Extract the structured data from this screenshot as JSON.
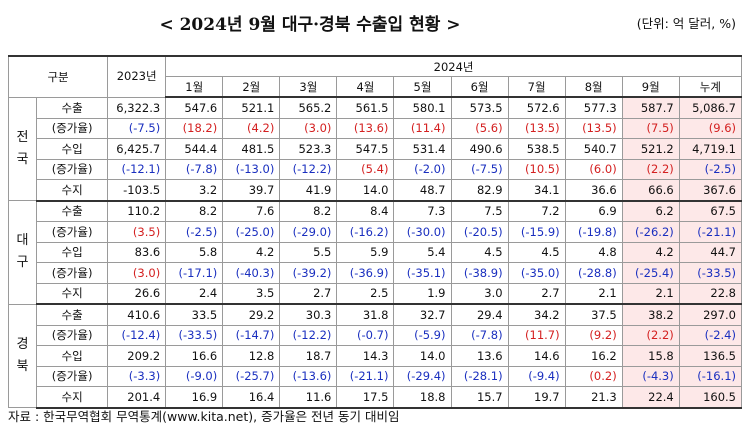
{
  "header": {
    "title": "< 2024년 9월 대구·경북 수출입 현황 >",
    "unit": "(단위: 억 달러, %)"
  },
  "table": {
    "head": {
      "category": "구분",
      "year_2023": "2023년",
      "year_2024": "2024년",
      "months": [
        "1월",
        "2월",
        "3월",
        "4월",
        "5월",
        "6월",
        "7월",
        "8월",
        "9월",
        "누계"
      ]
    },
    "groups": [
      {
        "region": "전국",
        "rows": [
          {
            "label": "수출",
            "cells": [
              "6,322.3",
              "547.6",
              "521.1",
              "565.2",
              "561.5",
              "580.1",
              "573.5",
              "572.6",
              "577.3",
              "587.7",
              "5,086.7"
            ]
          },
          {
            "label": "(증가율)",
            "cells": [
              "(-7.5)",
              "(18.2)",
              "(4.2)",
              "(3.0)",
              "(13.6)",
              "(11.4)",
              "(5.6)",
              "(13.5)",
              "(13.5)",
              "(7.5)",
              "(9.6)"
            ]
          },
          {
            "label": "수입",
            "cells": [
              "6,425.7",
              "544.4",
              "481.5",
              "523.3",
              "547.5",
              "531.4",
              "490.6",
              "538.5",
              "540.7",
              "521.2",
              "4,719.1"
            ]
          },
          {
            "label": "(증가율)",
            "cells": [
              "(-12.1)",
              "(-7.8)",
              "(-13.0)",
              "(-12.2)",
              "(5.4)",
              "(-2.0)",
              "(-7.5)",
              "(10.5)",
              "(6.0)",
              "(2.2)",
              "(-2.5)"
            ]
          },
          {
            "label": "수지",
            "cells": [
              "-103.5",
              "3.2",
              "39.7",
              "41.9",
              "14.0",
              "48.7",
              "82.9",
              "34.1",
              "36.6",
              "66.6",
              "367.6"
            ]
          }
        ]
      },
      {
        "region": "대구",
        "rows": [
          {
            "label": "수출",
            "cells": [
              "110.2",
              "8.2",
              "7.6",
              "8.2",
              "8.4",
              "7.3",
              "7.5",
              "7.2",
              "6.9",
              "6.2",
              "67.5"
            ]
          },
          {
            "label": "(증가율)",
            "cells": [
              "(3.5)",
              "(-2.5)",
              "(-25.0)",
              "(-29.0)",
              "(-16.2)",
              "(-30.0)",
              "(-20.5)",
              "(-15.9)",
              "(-19.8)",
              "(-26.2)",
              "(-21.1)"
            ]
          },
          {
            "label": "수입",
            "cells": [
              "83.6",
              "5.8",
              "4.2",
              "5.5",
              "5.9",
              "5.4",
              "4.5",
              "4.5",
              "4.8",
              "4.2",
              "44.7"
            ]
          },
          {
            "label": "(증가율)",
            "cells": [
              "(3.0)",
              "(-17.1)",
              "(-40.3)",
              "(-39.2)",
              "(-36.9)",
              "(-35.1)",
              "(-38.9)",
              "(-35.0)",
              "(-28.8)",
              "(-25.4)",
              "(-33.5)"
            ]
          },
          {
            "label": "수지",
            "cells": [
              "26.6",
              "2.4",
              "3.5",
              "2.7",
              "2.5",
              "1.9",
              "3.0",
              "2.7",
              "2.1",
              "2.1",
              "22.8"
            ]
          }
        ]
      },
      {
        "region": "경북",
        "rows": [
          {
            "label": "수출",
            "cells": [
              "410.6",
              "33.5",
              "29.2",
              "30.3",
              "31.8",
              "32.7",
              "29.4",
              "34.2",
              "37.5",
              "38.2",
              "297.0"
            ]
          },
          {
            "label": "(증가율)",
            "cells": [
              "(-12.4)",
              "(-33.5)",
              "(-14.7)",
              "(-12.2)",
              "(-0.7)",
              "(-5.9)",
              "(-7.8)",
              "(11.7)",
              "(9.2)",
              "(2.2)",
              "(-2.4)"
            ]
          },
          {
            "label": "수입",
            "cells": [
              "209.2",
              "16.6",
              "12.8",
              "18.7",
              "14.3",
              "14.0",
              "13.6",
              "14.6",
              "16.2",
              "15.8",
              "136.5"
            ]
          },
          {
            "label": "(증가율)",
            "cells": [
              "(-3.3)",
              "(-9.0)",
              "(-25.7)",
              "(-13.6)",
              "(-21.1)",
              "(-29.4)",
              "(-28.1)",
              "(-9.4)",
              "(0.2)",
              "(-4.3)",
              "(-16.1)"
            ]
          },
          {
            "label": "수지",
            "cells": [
              "201.4",
              "16.9",
              "16.4",
              "11.6",
              "17.5",
              "18.8",
              "15.7",
              "19.7",
              "21.3",
              "22.4",
              "160.5"
            ]
          }
        ]
      }
    ]
  },
  "footer": "자료 : 한국무역협회 무역통계(www.kita.net), 증가율은 전년 동기 대비임"
}
